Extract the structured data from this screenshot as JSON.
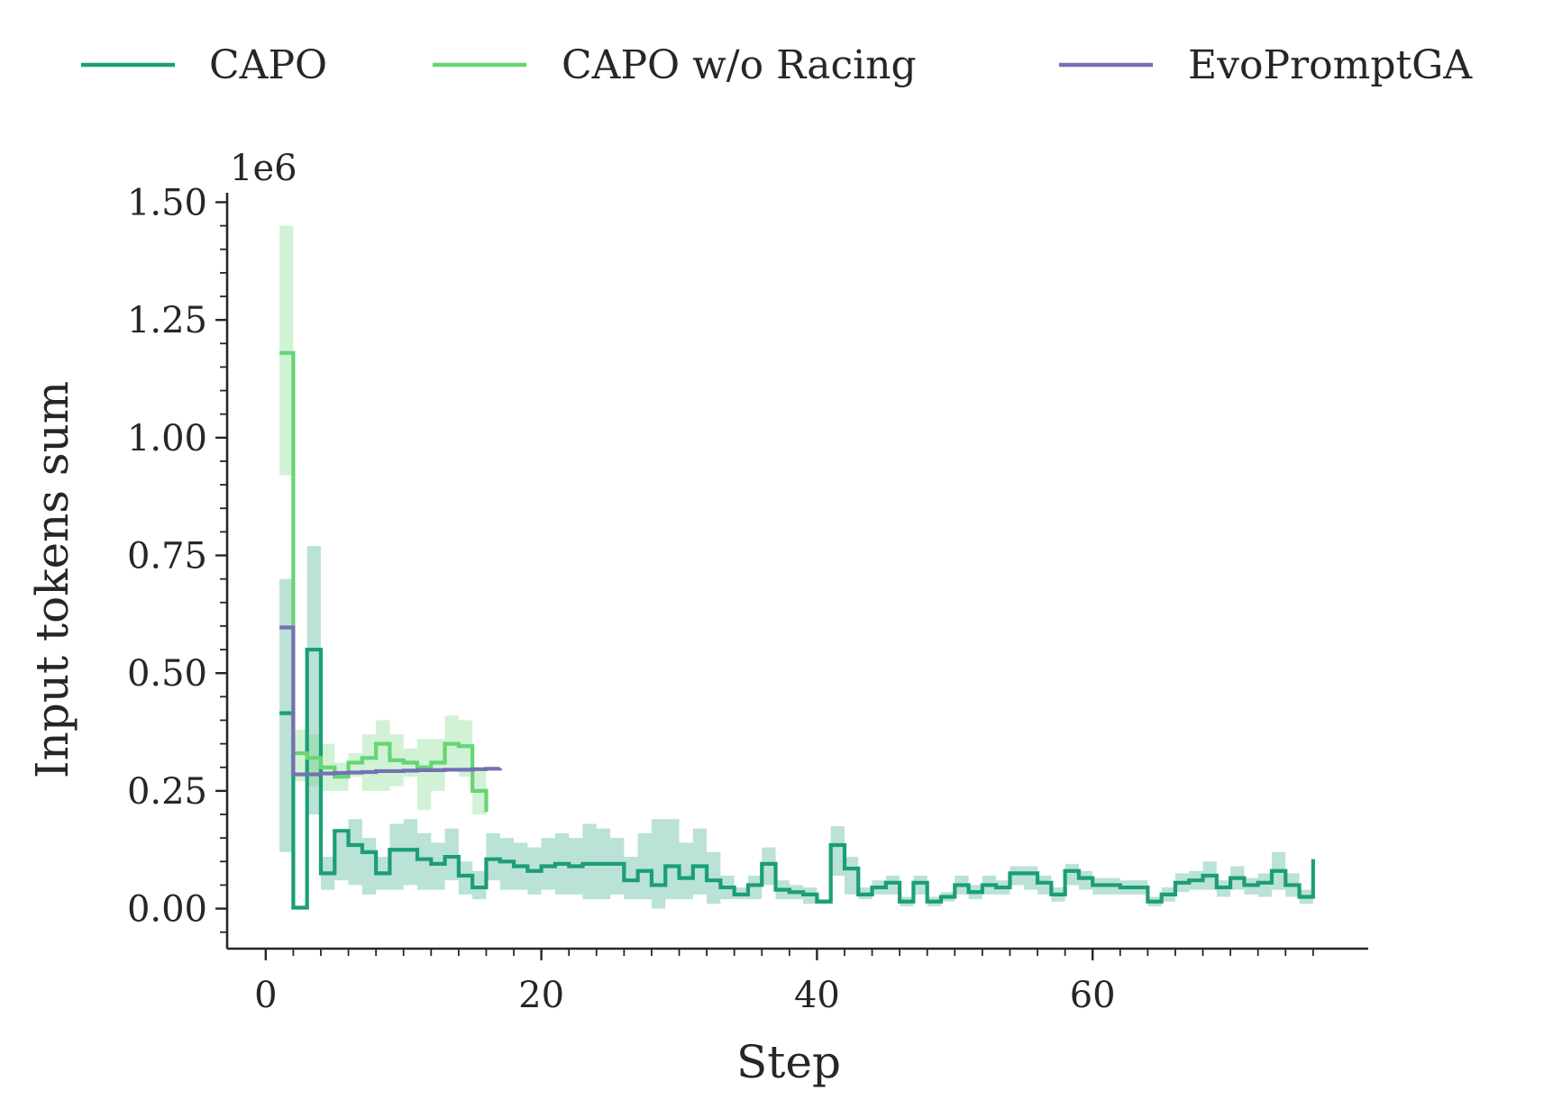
{
  "chart_data": {
    "type": "line",
    "drawstyle": "steps-post",
    "title": "",
    "xlabel": "Step",
    "ylabel": "Input tokens sum",
    "y_offset_label": "1e6",
    "y_scale": 1000000,
    "xlim": [
      -2.8,
      80
    ],
    "ylim": [
      -85000,
      1520000
    ],
    "xticks": [
      0,
      20,
      40,
      60
    ],
    "xtick_labels": [
      "0",
      "20",
      "40",
      "60"
    ],
    "yticks": [
      0,
      250000,
      500000,
      750000,
      1000000,
      1250000,
      1500000
    ],
    "ytick_labels": [
      "0.00",
      "0.25",
      "0.50",
      "0.75",
      "1.00",
      "1.25",
      "1.50"
    ],
    "y_minor_step": 50000,
    "x_minor_step": 2,
    "grid": false,
    "legend": {
      "placement": "top-center",
      "columns": 3
    },
    "series": [
      {
        "name": "CAPO",
        "color": "#1b9e77",
        "x": [
          1,
          2,
          3,
          4,
          5,
          6,
          7,
          8,
          9,
          10,
          11,
          12,
          13,
          14,
          15,
          16,
          17,
          18,
          19,
          20,
          21,
          22,
          23,
          24,
          25,
          26,
          27,
          28,
          29,
          30,
          31,
          32,
          33,
          34,
          35,
          36,
          37,
          38,
          39,
          40,
          41,
          42,
          43,
          44,
          45,
          46,
          47,
          48,
          49,
          50,
          51,
          52,
          53,
          54,
          55,
          56,
          57,
          58,
          59,
          60,
          61,
          62,
          63,
          64,
          65,
          66,
          67,
          68,
          69,
          70,
          71,
          72,
          73,
          74,
          75,
          76
        ],
        "y": [
          415000,
          2000,
          550000,
          75000,
          165000,
          135000,
          120000,
          75000,
          125000,
          125000,
          105000,
          95000,
          110000,
          70000,
          45000,
          105000,
          100000,
          90000,
          80000,
          90000,
          95000,
          90000,
          95000,
          95000,
          95000,
          60000,
          80000,
          50000,
          90000,
          65000,
          90000,
          60000,
          45000,
          30000,
          50000,
          95000,
          40000,
          35000,
          30000,
          15000,
          135000,
          85000,
          30000,
          45000,
          55000,
          15000,
          55000,
          15000,
          25000,
          50000,
          35000,
          50000,
          45000,
          75000,
          75000,
          55000,
          30000,
          80000,
          65000,
          50000,
          50000,
          45000,
          45000,
          15000,
          30000,
          55000,
          60000,
          70000,
          45000,
          65000,
          50000,
          55000,
          80000,
          50000,
          25000,
          105000
        ],
        "band_low": [
          120000,
          null,
          200000,
          40000,
          60000,
          50000,
          30000,
          40000,
          40000,
          50000,
          40000,
          40000,
          60000,
          30000,
          20000,
          60000,
          40000,
          40000,
          30000,
          40000,
          30000,
          30000,
          20000,
          20000,
          30000,
          20000,
          20000,
          0,
          20000,
          20000,
          30000,
          10000,
          20000,
          20000,
          20000,
          50000,
          20000,
          20000,
          10000,
          10000,
          70000,
          30000,
          20000,
          30000,
          30000,
          5000,
          30000,
          5000,
          15000,
          30000,
          20000,
          30000,
          30000,
          50000,
          40000,
          30000,
          15000,
          50000,
          40000,
          30000,
          30000,
          30000,
          30000,
          5000,
          15000,
          35000,
          40000,
          40000,
          25000,
          40000,
          30000,
          25000,
          40000,
          25000,
          10000,
          70000
        ],
        "band_high": [
          700000,
          null,
          770000,
          110000,
          160000,
          190000,
          150000,
          110000,
          180000,
          190000,
          160000,
          140000,
          170000,
          100000,
          80000,
          160000,
          150000,
          140000,
          130000,
          150000,
          160000,
          150000,
          180000,
          170000,
          150000,
          110000,
          160000,
          190000,
          190000,
          140000,
          170000,
          120000,
          70000,
          45000,
          70000,
          130000,
          60000,
          50000,
          45000,
          20000,
          175000,
          110000,
          45000,
          60000,
          70000,
          25000,
          70000,
          25000,
          35000,
          70000,
          50000,
          70000,
          60000,
          90000,
          90000,
          70000,
          45000,
          95000,
          80000,
          65000,
          65000,
          60000,
          60000,
          25000,
          45000,
          75000,
          80000,
          100000,
          60000,
          90000,
          65000,
          75000,
          120000,
          75000,
          40000,
          155000
        ]
      },
      {
        "name": "CAPO w/o Racing",
        "color": "#66d575",
        "x": [
          1,
          2,
          3,
          4,
          5,
          6,
          7,
          8,
          9,
          10,
          11,
          12,
          13,
          14,
          15,
          16
        ],
        "y": [
          1180000,
          330000,
          320000,
          300000,
          280000,
          310000,
          320000,
          350000,
          315000,
          310000,
          300000,
          310000,
          350000,
          345000,
          250000,
          205000
        ],
        "band_low": [
          920000,
          270000,
          260000,
          250000,
          250000,
          280000,
          250000,
          250000,
          260000,
          280000,
          210000,
          250000,
          300000,
          280000,
          200000,
          null
        ],
        "band_high": [
          1450000,
          380000,
          370000,
          350000,
          310000,
          330000,
          370000,
          400000,
          370000,
          340000,
          360000,
          360000,
          410000,
          400000,
          300000,
          null
        ]
      },
      {
        "name": "EvoPromptGA",
        "color": "#7570b3",
        "x": [
          1,
          2,
          3,
          4,
          5,
          6,
          7,
          8,
          9,
          10,
          11,
          12,
          13,
          14,
          15,
          16,
          17
        ],
        "y": [
          597000,
          285000,
          285000,
          287000,
          288000,
          289000,
          290000,
          292000,
          292000,
          293000,
          294000,
          294000,
          295000,
          295000,
          296000,
          297000,
          298000
        ],
        "band_low": [],
        "band_high": []
      }
    ]
  }
}
